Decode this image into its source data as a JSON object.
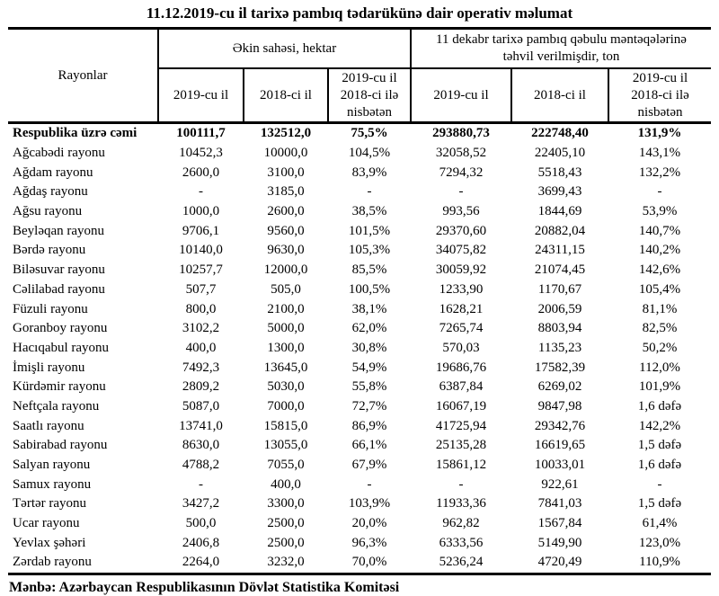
{
  "title": "11.12.2019-cu il tarixə pambıq tədarükünə dair operativ məlumat",
  "table": {
    "region_header": "Rayonlar",
    "group_area": "Əkin sahəsi, hektar",
    "group_ton": "11 dekabr tarixə pambıq qəbulu məntəqələrinə\ntəhvil verilmişdir, ton",
    "sub_headers": {
      "area_2019": "2019-cu il",
      "area_2018": "2018-ci il",
      "area_ratio": "2019-cu il\n2018-ci ilə\nnisbətən",
      "ton_2019": "2019-cu il",
      "ton_2018": "2018-ci il",
      "ton_ratio": "2019-cu il\n2018-ci ilə\nnisbətən"
    },
    "rows": [
      {
        "name": "Respublika üzrə cəmi",
        "bold": true,
        "values": [
          "100111,7",
          "132512,0",
          "75,5%",
          "293880,73",
          "222748,40",
          "131,9%"
        ]
      },
      {
        "name": "Ağcabədi rayonu",
        "values": [
          "10452,3",
          "10000,0",
          "104,5%",
          "32058,52",
          "22405,10",
          "143,1%"
        ]
      },
      {
        "name": "Ağdam rayonu",
        "values": [
          "2600,0",
          "3100,0",
          "83,9%",
          "7294,32",
          "5518,43",
          "132,2%"
        ]
      },
      {
        "name": "Ağdaş rayonu",
        "values": [
          "-",
          "3185,0",
          "-",
          "-",
          "3699,43",
          "-"
        ]
      },
      {
        "name": "Ağsu rayonu",
        "values": [
          "1000,0",
          "2600,0",
          "38,5%",
          "993,56",
          "1844,69",
          "53,9%"
        ]
      },
      {
        "name": "Beyləqan rayonu",
        "values": [
          "9706,1",
          "9560,0",
          "101,5%",
          "29370,60",
          "20882,04",
          "140,7%"
        ]
      },
      {
        "name": "Bərdə rayonu",
        "values": [
          "10140,0",
          "9630,0",
          "105,3%",
          "34075,82",
          "24311,15",
          "140,2%"
        ]
      },
      {
        "name": "Biləsuvar rayonu",
        "values": [
          "10257,7",
          "12000,0",
          "85,5%",
          "30059,92",
          "21074,45",
          "142,6%"
        ]
      },
      {
        "name": "Cəlilabad rayonu",
        "values": [
          "507,7",
          "505,0",
          "100,5%",
          "1233,90",
          "1170,67",
          "105,4%"
        ]
      },
      {
        "name": "Füzuli rayonu",
        "values": [
          "800,0",
          "2100,0",
          "38,1%",
          "1628,21",
          "2006,59",
          "81,1%"
        ]
      },
      {
        "name": "Goranboy rayonu",
        "values": [
          "3102,2",
          "5000,0",
          "62,0%",
          "7265,74",
          "8803,94",
          "82,5%"
        ]
      },
      {
        "name": "Hacıqabul rayonu",
        "values": [
          "400,0",
          "1300,0",
          "30,8%",
          "570,03",
          "1135,23",
          "50,2%"
        ]
      },
      {
        "name": "İmişli rayonu",
        "values": [
          "7492,3",
          "13645,0",
          "54,9%",
          "19686,76",
          "17582,39",
          "112,0%"
        ]
      },
      {
        "name": "Kürdəmir rayonu",
        "values": [
          "2809,2",
          "5030,0",
          "55,8%",
          "6387,84",
          "6269,02",
          "101,9%"
        ]
      },
      {
        "name": "Neftçala rayonu",
        "values": [
          "5087,0",
          "7000,0",
          "72,7%",
          "16067,19",
          "9847,98",
          "1,6 dəfə"
        ]
      },
      {
        "name": "Saatlı rayonu",
        "values": [
          "13741,0",
          "15815,0",
          "86,9%",
          "41725,94",
          "29342,76",
          "142,2%"
        ]
      },
      {
        "name": "Sabirabad rayonu",
        "values": [
          "8630,0",
          "13055,0",
          "66,1%",
          "25135,28",
          "16619,65",
          "1,5 dəfə"
        ]
      },
      {
        "name": "Salyan rayonu",
        "values": [
          "4788,2",
          "7055,0",
          "67,9%",
          "15861,12",
          "10033,01",
          "1,6 dəfə"
        ]
      },
      {
        "name": "Samux rayonu",
        "values": [
          "-",
          "400,0",
          "-",
          "-",
          "922,61",
          "-"
        ]
      },
      {
        "name": "Tərtər rayonu",
        "values": [
          "3427,2",
          "3300,0",
          "103,9%",
          "11933,36",
          "7841,03",
          "1,5 dəfə"
        ]
      },
      {
        "name": "Ucar rayonu",
        "values": [
          "500,0",
          "2500,0",
          "20,0%",
          "962,82",
          "1567,84",
          "61,4%"
        ]
      },
      {
        "name": "Yevlax şəhəri",
        "values": [
          "2406,8",
          "2500,0",
          "96,3%",
          "6333,56",
          "5149,90",
          "123,0%"
        ]
      },
      {
        "name": "Zərdab rayonu",
        "values": [
          "2264,0",
          "3232,0",
          "70,0%",
          "5236,24",
          "4720,49",
          "110,9%"
        ]
      }
    ]
  },
  "source": "Mənbə: Azərbaycan Respublikasının Dövlət Statistika Komitəsi"
}
